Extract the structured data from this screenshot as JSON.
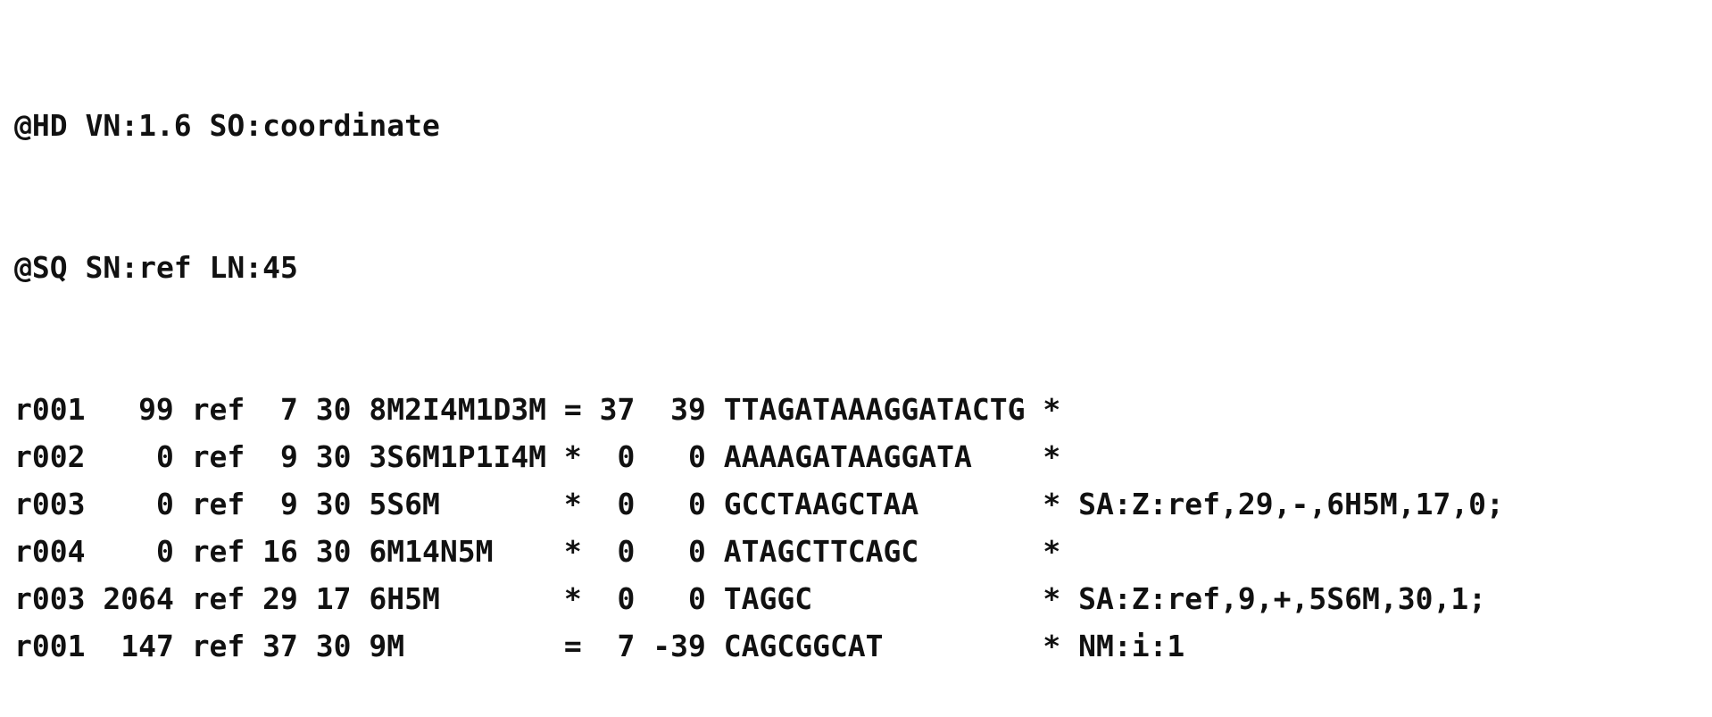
{
  "header_lines": [
    "@HD VN:1.6 SO:coordinate",
    "@SQ SN:ref LN:45"
  ],
  "records": [
    {
      "qname": "r001",
      "flag": "99",
      "rname": "ref",
      "pos": "7",
      "mapq": "30",
      "cigar": "8M2I4M1D3M",
      "rnext": "=",
      "pnext": "37",
      "tlen": "39",
      "seq": "TTAGATAAAGGATACTG",
      "qual": "*",
      "tags": ""
    },
    {
      "qname": "r002",
      "flag": "0",
      "rname": "ref",
      "pos": "9",
      "mapq": "30",
      "cigar": "3S6M1P1I4M",
      "rnext": "*",
      "pnext": "0",
      "tlen": "0",
      "seq": "AAAAGATAAGGATA",
      "qual": "*",
      "tags": ""
    },
    {
      "qname": "r003",
      "flag": "0",
      "rname": "ref",
      "pos": "9",
      "mapq": "30",
      "cigar": "5S6M",
      "rnext": "*",
      "pnext": "0",
      "tlen": "0",
      "seq": "GCCTAAGCTAA",
      "qual": "*",
      "tags": "SA:Z:ref,29,-,6H5M,17,0;"
    },
    {
      "qname": "r004",
      "flag": "0",
      "rname": "ref",
      "pos": "16",
      "mapq": "30",
      "cigar": "6M14N5M",
      "rnext": "*",
      "pnext": "0",
      "tlen": "0",
      "seq": "ATAGCTTCAGC",
      "qual": "*",
      "tags": ""
    },
    {
      "qname": "r003",
      "flag": "2064",
      "rname": "ref",
      "pos": "29",
      "mapq": "17",
      "cigar": "6H5M",
      "rnext": "*",
      "pnext": "0",
      "tlen": "0",
      "seq": "TAGGC",
      "qual": "*",
      "tags": "SA:Z:ref,9,+,5S6M,30,1;"
    },
    {
      "qname": "r001",
      "flag": "147",
      "rname": "ref",
      "pos": "37",
      "mapq": "30",
      "cigar": "9M",
      "rnext": "=",
      "pnext": "7",
      "tlen": "-39",
      "seq": "CAGCGGCAT",
      "qual": "*",
      "tags": "NM:i:1"
    }
  ]
}
